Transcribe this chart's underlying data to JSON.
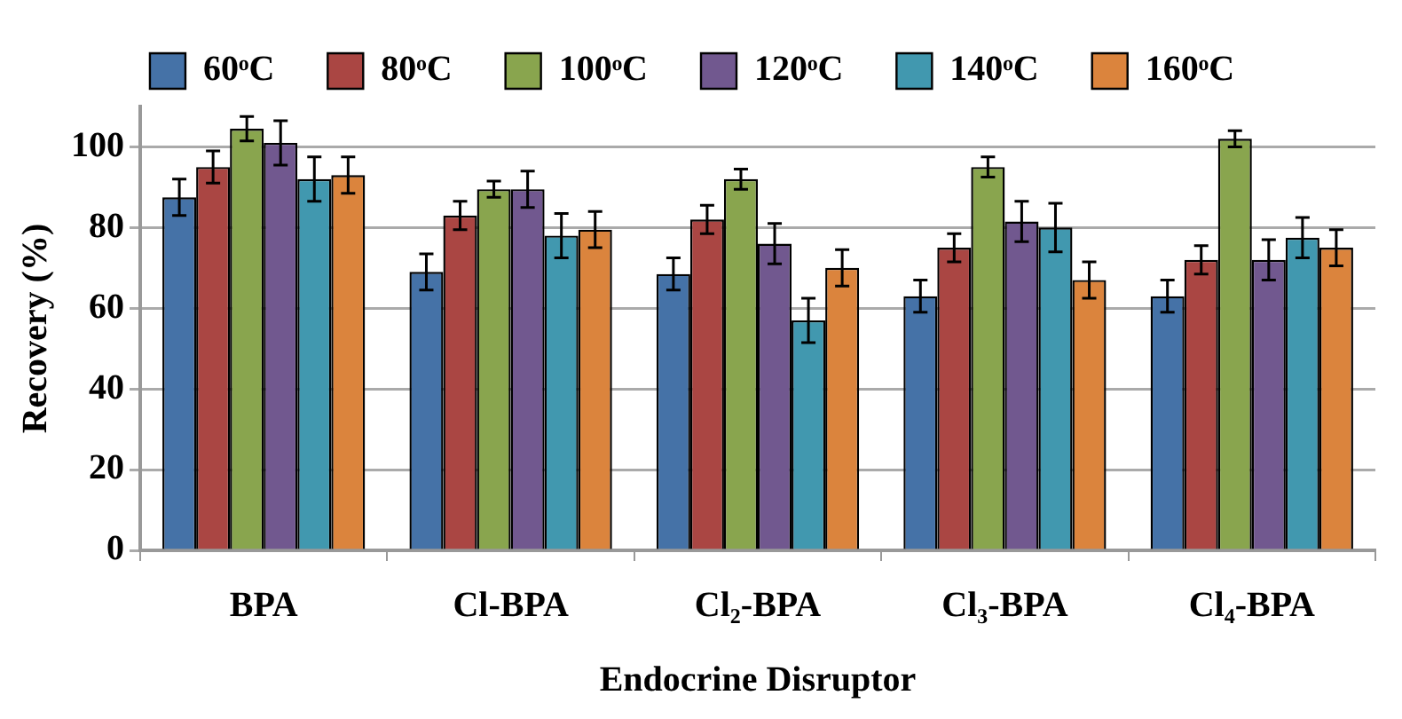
{
  "chart_data": {
    "type": "bar",
    "xlabel": "Endocrine Disruptor",
    "ylabel": "Recovery (%)",
    "categories": [
      "BPA",
      "Cl-BPA",
      "Cl₂-BPA",
      "Cl₃-BPA",
      "Cl₄-BPA"
    ],
    "series": [
      {
        "name": "60ᵒC",
        "color": "#4572a7",
        "values": [
          87.5,
          69,
          68.5,
          63,
          63
        ],
        "errors": [
          4.5,
          4.5,
          4,
          4,
          4
        ]
      },
      {
        "name": "80ᵒC",
        "color": "#aa4643",
        "values": [
          95,
          83,
          82,
          75,
          72
        ],
        "errors": [
          4,
          3.5,
          3.5,
          3.5,
          3.5
        ]
      },
      {
        "name": "100ᵒC",
        "color": "#89a54e",
        "values": [
          104.5,
          89.5,
          92,
          95,
          102
        ],
        "errors": [
          3,
          2,
          2.5,
          2.5,
          2
        ]
      },
      {
        "name": "120ᵒC",
        "color": "#71588f",
        "values": [
          101,
          89.5,
          76,
          81.5,
          72
        ],
        "errors": [
          5.5,
          4.5,
          5,
          5,
          5
        ]
      },
      {
        "name": "140ᵒC",
        "color": "#4198af",
        "values": [
          92,
          78,
          57,
          80,
          77.5
        ],
        "errors": [
          5.5,
          5.5,
          5.5,
          6,
          5
        ]
      },
      {
        "name": "160ᵒC",
        "color": "#db843d",
        "values": [
          93,
          79.5,
          70,
          67,
          75
        ],
        "errors": [
          4.5,
          4.5,
          4.5,
          4.5,
          4.5
        ]
      }
    ],
    "ylim": [
      0,
      110
    ],
    "yticks": [
      0,
      20,
      40,
      60,
      80,
      100
    ],
    "grid": "y",
    "legend": "top"
  }
}
